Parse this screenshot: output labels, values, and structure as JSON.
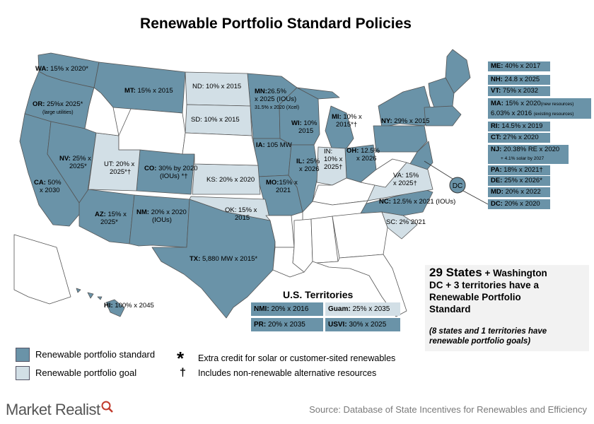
{
  "title": "Renewable Portfolio Standard Policies",
  "colors": {
    "standard": "#6a93a8",
    "goal": "#d2dfe6",
    "none": "#ffffff",
    "border": "#555555"
  },
  "states": {
    "wa": {
      "name": "WA:",
      "text": "15% x 2020*"
    },
    "or": {
      "name": "OR:",
      "text": "25%x 2025*",
      "note": "(large utilities)"
    },
    "ca": {
      "name": "CA:",
      "text": "50%",
      "text2": "x 2030"
    },
    "nv": {
      "name": "NV:",
      "text": "25% x",
      "text2": "2025*"
    },
    "az": {
      "name": "AZ:",
      "text": "15% x",
      "text2": "2025*"
    },
    "nm": {
      "name": "NM:",
      "text": "20% x 2020",
      "text2": "(IOUs)"
    },
    "tx": {
      "name": "TX:",
      "text": "5,880 MW x 2015*"
    },
    "ut": {
      "name": "UT:",
      "text": "20% x",
      "text2": "2025*†"
    },
    "co": {
      "name": "CO:",
      "text": "30% by 2020",
      "text2": "(IOUs) *†"
    },
    "mt": {
      "name": "MT:",
      "text": "15% x 2015"
    },
    "nd": {
      "name": "ND:",
      "text": "10% x 2015"
    },
    "sd": {
      "name": "SD:",
      "text": "10% x 2015"
    },
    "ks": {
      "name": "KS:",
      "text": "20% x 2020"
    },
    "ok": {
      "name": "OK:",
      "text": "15% x",
      "text2": "2015"
    },
    "mn": {
      "name": "MN:",
      "text": "26.5%",
      "text2": "x 2025 (IOUs)",
      "note": "31.5% x 2020 (Xcel)"
    },
    "ia": {
      "name": "IA:",
      "text": "105 MW"
    },
    "mo": {
      "name": "MO:",
      "text": "15% x",
      "text2": "2021"
    },
    "wi": {
      "name": "WI:",
      "text": "10%",
      "text2": "2015"
    },
    "il": {
      "name": "IL:",
      "text": "25%",
      "text2": "x 2026"
    },
    "mi": {
      "name": "MI:",
      "text": "10% x",
      "text2": "2015*†"
    },
    "in": {
      "name": "IN:",
      "text": "10% x",
      "text2": "2025†"
    },
    "oh": {
      "name": "OH:",
      "text": "12.5%",
      "text2": "x 2026"
    },
    "ny": {
      "name": "NY:",
      "text": "29% x 2015"
    },
    "va": {
      "name": "VA:",
      "text": "15%",
      "text2": "x 2025†"
    },
    "nc": {
      "name": "NC:",
      "text": "12.5% x 2021 (IOUs)"
    },
    "sc": {
      "name": "SC:",
      "text": "2% 2021"
    },
    "hi": {
      "name": "HI:",
      "text": "100% x 2045"
    },
    "dc_marker": "DC"
  },
  "northeast": [
    {
      "name": "ME:",
      "text": "40% x 2017"
    },
    {
      "name": "NH:",
      "text": "24.8 x 2025"
    },
    {
      "name": "VT:",
      "text": "75% x 2032"
    },
    {
      "name": "MA:",
      "text": "15% x 2020",
      "note": "(new resources)",
      "text2": "6.03% x 2016",
      "note2": "(existing resources)"
    },
    {
      "name": "RI:",
      "text": "14.5% x 2019"
    },
    {
      "name": "CT:",
      "text": "27% x 2020"
    },
    {
      "name": "NJ:",
      "text": "20.38% RE x 2020",
      "note": "+ 4.1% solar by 2027"
    },
    {
      "name": "PA:",
      "text": "18% x 2021†"
    },
    {
      "name": "DE:",
      "text": "25% x 2026*"
    },
    {
      "name": "MD:",
      "text": "20% x 2022"
    },
    {
      "name": "DC:",
      "text": "20% x 2020"
    }
  ],
  "territories": {
    "title": "U.S. Territories",
    "nmi": {
      "name": "NMI:",
      "text": "20% x 2016"
    },
    "guam": {
      "name": "Guam:",
      "text": "25% x 2035"
    },
    "pr": {
      "name": "PR:",
      "text": "20% x 2035"
    },
    "usvi": {
      "name": "USVI:",
      "text": "30% x 2025"
    }
  },
  "legend": {
    "standard": "Renewable portfolio standard",
    "goal": "Renewable portfolio goal"
  },
  "notes": {
    "asterisk_symbol": "*",
    "asterisk": "Extra credit for solar or customer-sited renewables",
    "dagger_symbol": "†",
    "dagger": "Includes non-renewable alternative resources"
  },
  "summary": {
    "count": "29 States",
    "line1": "+ Washington",
    "line2": "DC + 3 territories  have a",
    "line3": "Renewable Portfolio",
    "line4": "Standard",
    "italic": "(8 states and 1 territories have renewable portfolio goals)"
  },
  "brand": "Market Realist",
  "source": "Source:  Database of State Incentives  for Renewables and Efficiency"
}
